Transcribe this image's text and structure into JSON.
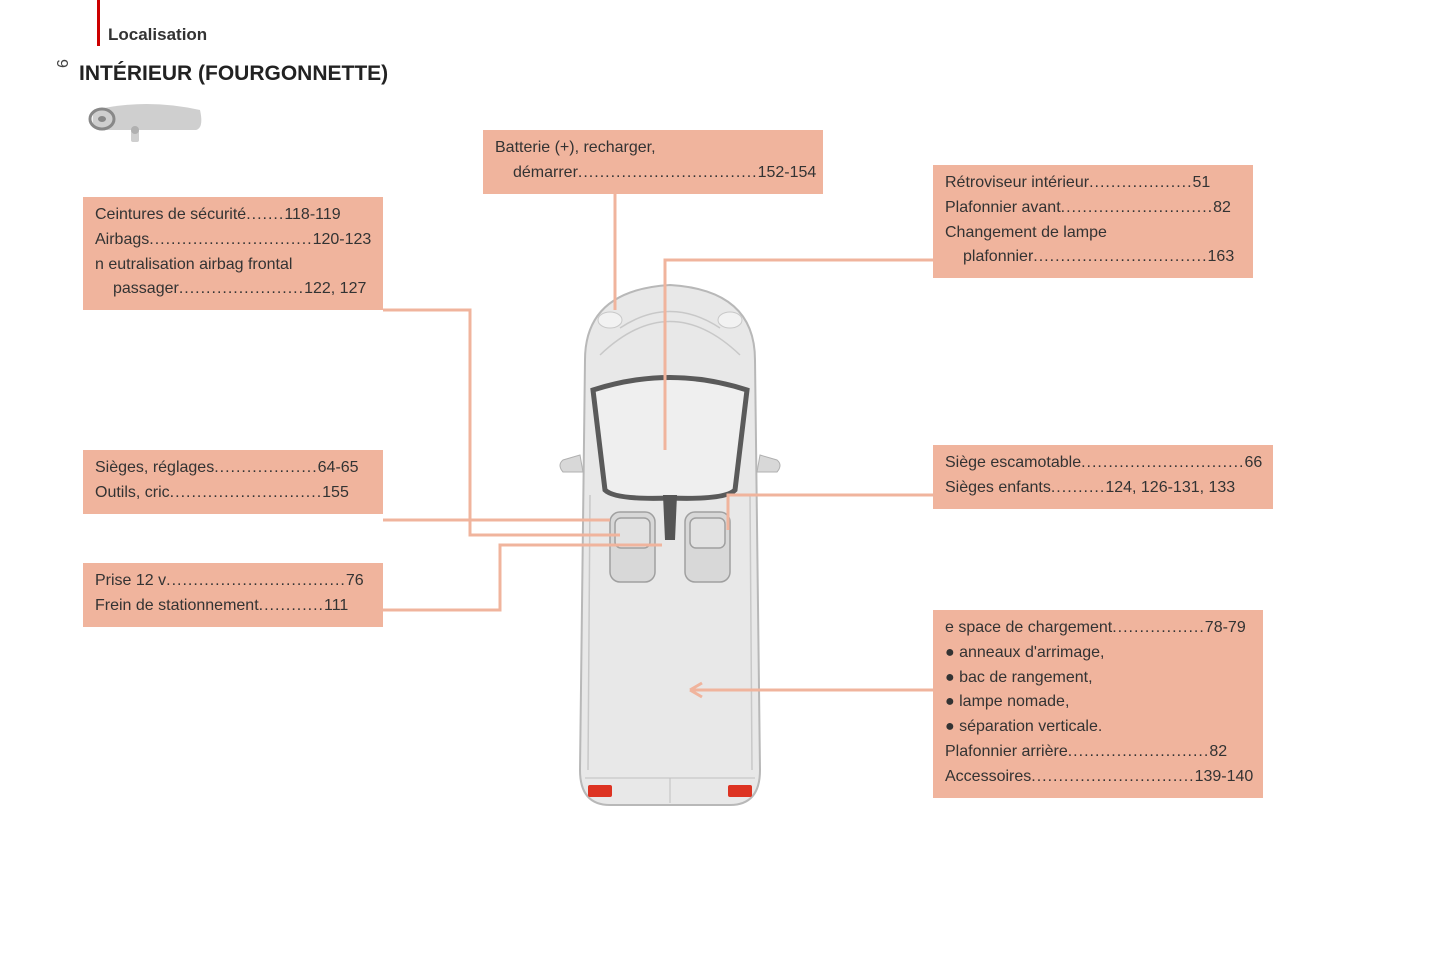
{
  "page_number": "6",
  "section_label": "Localisation",
  "title": "INTÉRIEUR (FOURGONNETTE)",
  "accent_bar_color": "#cc0000",
  "callout_bg": "#f0b49d",
  "leader_color": "#f0b49d",
  "text_color": "#333333",
  "vehicle_body_fill": "#e8e8e8",
  "vehicle_body_stroke": "#b8b8b8",
  "vehicle_glass_stroke": "#5a5a5a",
  "vehicle_seat_fill": "#d8d8d8",
  "vehicle_seat_stroke": "#a0a0a0",
  "vehicle_taillight_fill": "#dd3322",
  "dash_icon_fill": "#cfcfcf",
  "dash_icon_stroke": "#a8a8a8",
  "callouts": {
    "battery": [
      {
        "label": "Batterie (+), recharger,",
        "pages": ""
      },
      {
        "label": "démarrer",
        "pages": "152-154",
        "indent": true
      }
    ],
    "seatbelts": [
      {
        "label": "Ceintures de sécurité",
        "pages": "118-119"
      },
      {
        "label": "Airbags",
        "pages": "120-123"
      },
      {
        "label": "n eutralisation airbag frontal",
        "pages": ""
      },
      {
        "label": "passager",
        "pages": "122, 127",
        "indent": true
      }
    ],
    "mirror": [
      {
        "label": "Rétroviseur intérieur",
        "pages": "51"
      },
      {
        "label": "Plafonnier avant",
        "pages": "82"
      },
      {
        "label": "Changement de lampe",
        "pages": ""
      },
      {
        "label": "plafonnier",
        "pages": "163",
        "indent": true
      }
    ],
    "seats": [
      {
        "label": "Sièges, réglages",
        "pages": "64-65"
      },
      {
        "label": "Outils, cric",
        "pages": "155"
      }
    ],
    "foldseat": [
      {
        "label": "Siège escamotable",
        "pages": "66"
      },
      {
        "label": "Sièges enfants",
        "pages": "124, 126-131, 133"
      }
    ],
    "v12": [
      {
        "label": "Prise 12 v",
        "pages": "76"
      },
      {
        "label": "Frein de stationnement",
        "pages": "111"
      }
    ],
    "cargo": [
      {
        "label": "e space de chargement",
        "pages": "78-79"
      },
      {
        "label": "anneaux d'arrimage,",
        "bullet": true
      },
      {
        "label": "bac de rangement,",
        "bullet": true
      },
      {
        "label": "lampe nomade,",
        "bullet": true
      },
      {
        "label": "séparation verticale.",
        "bullet": true
      },
      {
        "label": "Plafonnier arrière",
        "pages": "82"
      },
      {
        "label": "Accessoires",
        "pages": "139-140"
      }
    ]
  }
}
